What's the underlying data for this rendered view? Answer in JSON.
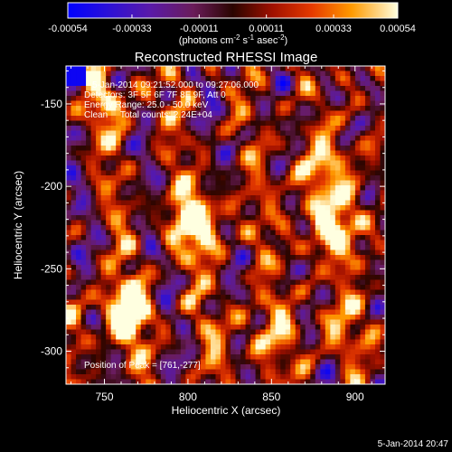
{
  "chart_data": {
    "type": "heatmap",
    "title": "Reconstructed RHESSI Image",
    "xlabel": "Heliocentric X (arcsec)",
    "ylabel": "Heliocentric Y (arcsec)",
    "xlim": [
      727,
      918
    ],
    "ylim": [
      -320,
      -127
    ],
    "x_ticks": [
      750,
      800,
      850,
      900
    ],
    "y_ticks": [
      -150,
      -200,
      -250,
      -300
    ],
    "colorbar": {
      "min": -0.00054,
      "max": 0.00054,
      "ticks": [
        -0.00054,
        -0.00033,
        -0.00011,
        0.00011,
        0.00033,
        0.00054
      ],
      "tick_labels": [
        "-0.00054",
        "-0.00033",
        "-0.00011",
        "0.00011",
        "0.00033",
        "0.00054"
      ],
      "units_base": "(photons cm",
      "units_exp1": "-2",
      "units_mid": " s",
      "units_exp2": "-1",
      "units_mid2": " asec",
      "units_exp3": "-2",
      "units_end": ")"
    },
    "sources": [
      {
        "x": 805,
        "y": -222,
        "peak": 0.00054
      },
      {
        "x": 887,
        "y": -225,
        "peak": 0.00046
      },
      {
        "x": 761,
        "y": -277,
        "peak": 0.00054
      },
      {
        "x": 880,
        "y": -190,
        "peak": 0.00036
      },
      {
        "x": 755,
        "y": -150,
        "peak": 0.00027
      },
      {
        "x": 840,
        "y": -290,
        "peak": 0.00028
      },
      {
        "x": 890,
        "y": -285,
        "peak": 0.00024
      }
    ],
    "annotations": {
      "time_range": "5-Jan-2014 09:21:52.000 to 09:27:06.000",
      "detectors": "Detectors: 3F 5F 6F 7F 8F 9F, Att 0",
      "energy": "Energy Range: 25.0 - 50.0 keV",
      "clean": "Clean     Total counts: 2.24E+04",
      "peak": "Position of Peak = [761,-277]"
    },
    "footer_date": "5-Jan-2014 20:47",
    "grid": false
  }
}
